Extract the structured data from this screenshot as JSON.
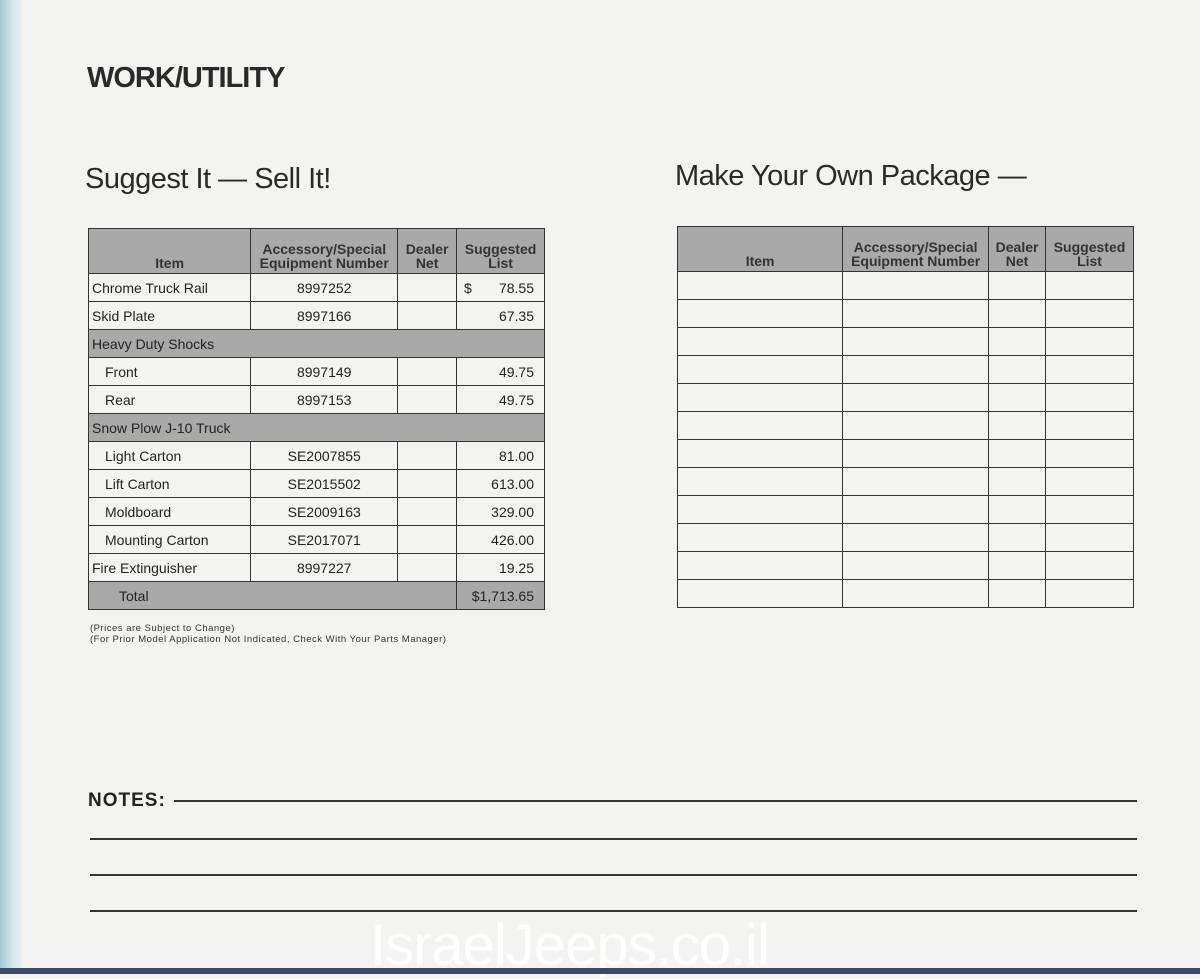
{
  "page_title": "WORK/UTILITY",
  "left": {
    "heading": "Suggest It — Sell It!",
    "columns": [
      "Item",
      "Accessory/Special Equipment Number",
      "Dealer Net",
      "Suggested List"
    ],
    "rows": [
      {
        "item": "Chrome Truck Rail",
        "number": "8997252",
        "dealer_net": "",
        "currency": "$",
        "list": "78.55"
      },
      {
        "item": "Skid Plate",
        "number": "8997166",
        "dealer_net": "",
        "list": "67.35"
      },
      {
        "group": "Heavy Duty Shocks"
      },
      {
        "item": "Front",
        "number": "8997149",
        "dealer_net": "",
        "list": "49.75",
        "indent": true
      },
      {
        "item": "Rear",
        "number": "8997153",
        "dealer_net": "",
        "list": "49.75",
        "indent": true
      },
      {
        "group": "Snow Plow J-10 Truck"
      },
      {
        "item": "Light Carton",
        "number": "SE2007855",
        "dealer_net": "",
        "list": "81.00",
        "indent": true
      },
      {
        "item": "Lift Carton",
        "number": "SE2015502",
        "dealer_net": "",
        "list": "613.00",
        "indent": true
      },
      {
        "item": "Moldboard",
        "number": "SE2009163",
        "dealer_net": "",
        "list": "329.00",
        "indent": true
      },
      {
        "item": "Mounting Carton",
        "number": "SE2017071",
        "dealer_net": "",
        "list": "426.00",
        "indent": true
      },
      {
        "item": "Fire Extinguisher",
        "number": "8997227",
        "dealer_net": "",
        "list": "19.25"
      }
    ],
    "total_label": "Total",
    "total_value": "$1,713.65",
    "footnotes": [
      "(Prices are Subject to Change)",
      "(For Prior Model Application Not Indicated, Check With Your Parts Manager)"
    ]
  },
  "right": {
    "heading": "Make Your Own Package —",
    "columns": [
      "Item",
      "Accessory/Special Equipment Number",
      "Dealer Net",
      "Suggested List"
    ],
    "blank_rows": 12
  },
  "notes_label": "NOTES:",
  "watermark": "IsraelJeeps.co.il"
}
